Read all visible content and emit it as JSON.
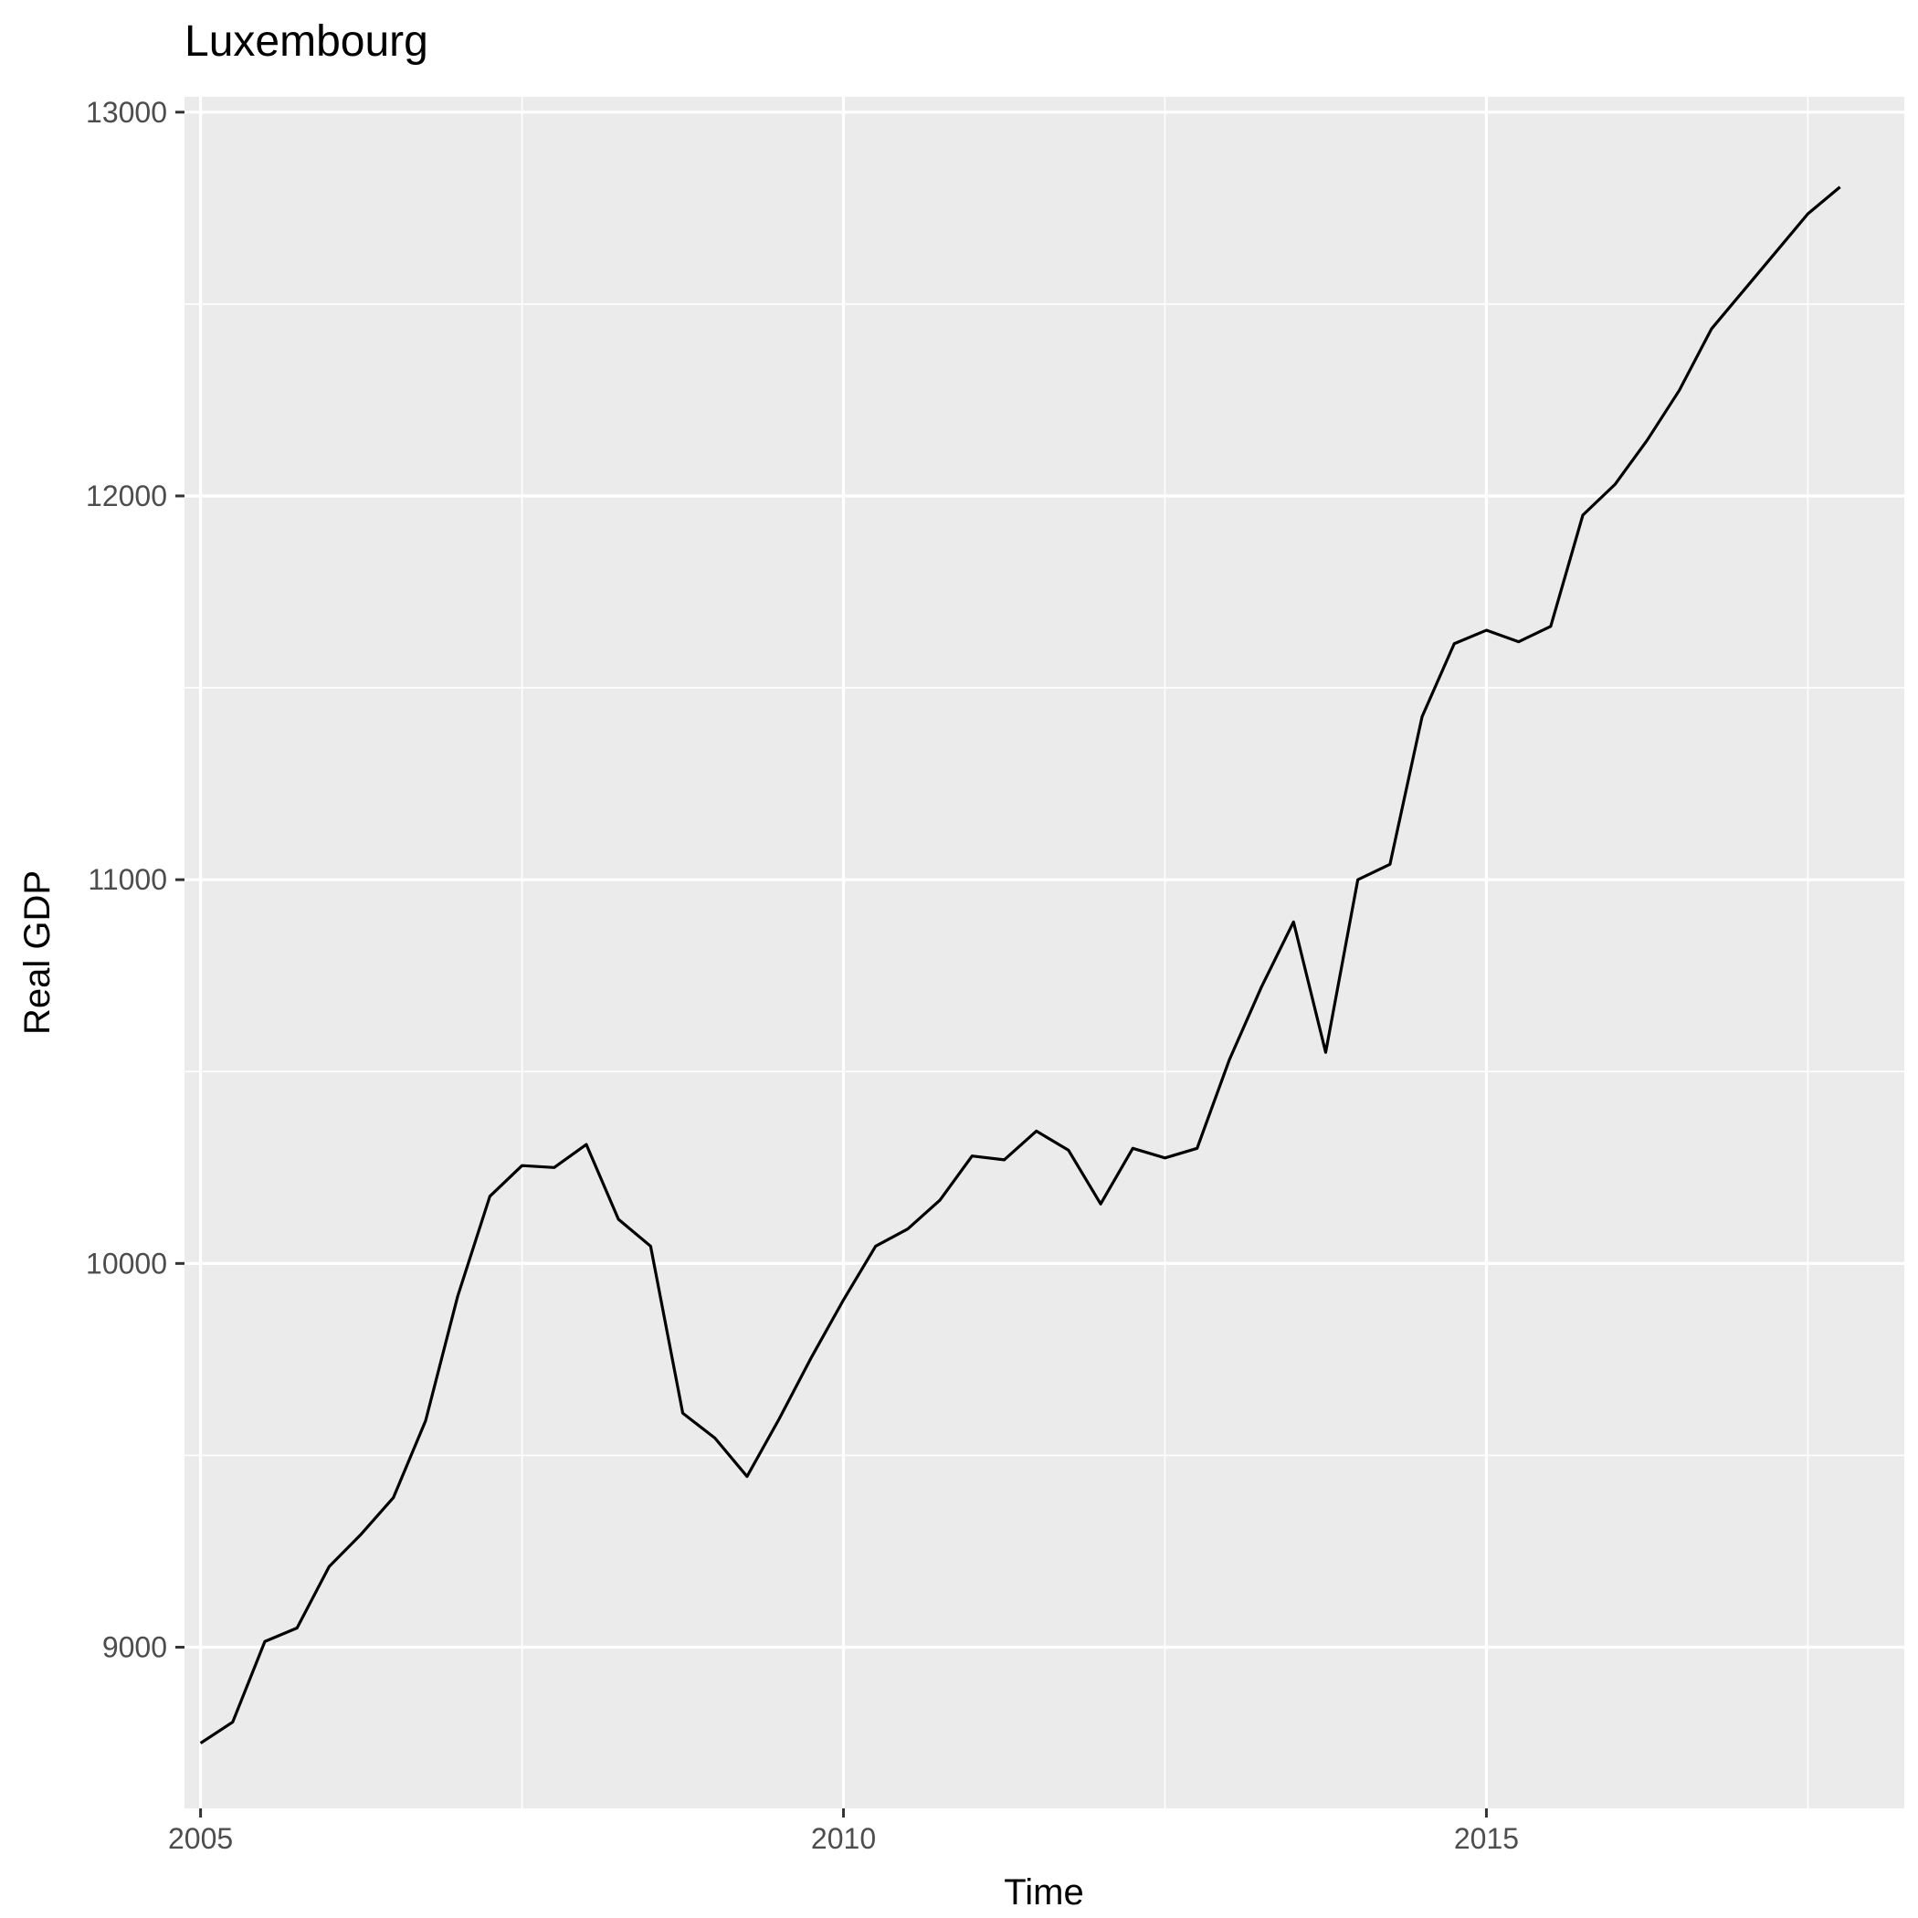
{
  "chart_data": {
    "type": "line",
    "title": "Luxembourg",
    "xlabel": "Time",
    "ylabel": "Real GDP",
    "xlim": [
      2004.875,
      2018.25
    ],
    "ylim": [
      8580,
      13040
    ],
    "x_ticks": [
      2005,
      2010,
      2015
    ],
    "x_tick_labels": [
      "2005",
      "2010",
      "2015"
    ],
    "x_minor_ticks": [
      2007.5,
      2012.5,
      2017.5
    ],
    "y_ticks": [
      9000,
      10000,
      11000,
      12000,
      13000
    ],
    "y_tick_labels": [
      "9000",
      "10000",
      "11000",
      "12000",
      "13000"
    ],
    "y_minor_ticks": [
      9500,
      10500,
      11500,
      12500
    ],
    "grid": true,
    "colors": {
      "panel_background": "#ebebeb",
      "grid_line": "#ffffff",
      "series_line": "#000000",
      "tick_label": "#4d4d4d",
      "tick_mark": "#333333"
    },
    "series": [
      {
        "x": [
          2005.0,
          2005.25,
          2005.5,
          2005.75,
          2006.0,
          2006.25,
          2006.5,
          2006.75,
          2007.0,
          2007.25,
          2007.5,
          2007.75,
          2008.0,
          2008.25,
          2008.5,
          2008.75,
          2009.0,
          2009.25,
          2009.5,
          2009.75,
          2010.0,
          2010.25,
          2010.5,
          2010.75,
          2011.0,
          2011.25,
          2011.5,
          2011.75,
          2012.0,
          2012.25,
          2012.5,
          2012.75,
          2013.0,
          2013.25,
          2013.5,
          2013.75,
          2014.0,
          2014.25,
          2014.5,
          2014.75,
          2015.0,
          2015.25,
          2015.5,
          2015.75,
          2016.0,
          2016.25,
          2016.5,
          2016.75,
          2017.0,
          2017.25,
          2017.5,
          2017.75
        ],
        "values": [
          8750,
          8805,
          9015,
          9050,
          9210,
          9295,
          9390,
          9590,
          9915,
          10175,
          10255,
          10250,
          10310,
          10115,
          10045,
          9610,
          9545,
          9445,
          9595,
          9755,
          9905,
          10045,
          10090,
          10165,
          10280,
          10270,
          10345,
          10295,
          10155,
          10300,
          10275,
          10300,
          10530,
          10720,
          10890,
          10550,
          11000,
          11040,
          11425,
          11615,
          11650,
          11620,
          11660,
          11950,
          12030,
          12145,
          12275,
          12435,
          12535,
          12635,
          12735,
          12805
        ]
      }
    ]
  }
}
